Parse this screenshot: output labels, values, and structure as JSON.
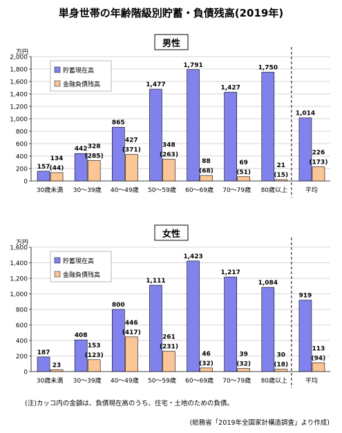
{
  "title": "単身世帯の年齢階級別貯蓄・負債残高(2019年)",
  "footnote": "(注)カッコ内の金額は、負債現在高のうち、住宅・土地のための負債。",
  "source": "(総務省「2019年全国家計構造調査」より作成)",
  "colors": {
    "savings": "#8282ee",
    "debt": "#fbc596"
  },
  "chart_data": [
    {
      "type": "bar",
      "title": "男性",
      "unit": "万円",
      "ylim": [
        0,
        2000
      ],
      "yticks": [
        0,
        200,
        400,
        600,
        800,
        1000,
        1200,
        1400,
        1600,
        1800,
        2000
      ],
      "ytick_labels": [
        "0",
        "200",
        "400",
        "600",
        "800",
        "1,000",
        "1,200",
        "1,400",
        "1,600",
        "1,800",
        "2,000"
      ],
      "categories": [
        "30歳未満",
        "30～39歳",
        "40～49歳",
        "50～59歳",
        "60～69歳",
        "70～79歳",
        "80歳以上",
        "平均"
      ],
      "legend": [
        "貯蓄現在高",
        "金融負債残高"
      ],
      "series": [
        {
          "name": "貯蓄現在高",
          "values": [
            157,
            442,
            865,
            1477,
            1791,
            1427,
            1750,
            1014
          ],
          "labels": [
            "157",
            "442",
            "865",
            "1,477",
            "1,791",
            "1,427",
            "1,750",
            "1,014"
          ]
        },
        {
          "name": "金融負債残高",
          "values": [
            134,
            328,
            427,
            348,
            88,
            69,
            21,
            226
          ],
          "labels": [
            "134",
            "328",
            "427",
            "348",
            "88",
            "69",
            "21",
            "226"
          ],
          "sub_labels": [
            "(44)",
            "(285)",
            "(371)",
            "(263)",
            "(68)",
            "(51)",
            "(15)",
            "(173)"
          ]
        }
      ]
    },
    {
      "type": "bar",
      "title": "女性",
      "unit": "万円",
      "ylim": [
        0,
        1600
      ],
      "yticks": [
        0,
        200,
        400,
        600,
        800,
        1000,
        1200,
        1400,
        1600
      ],
      "ytick_labels": [
        "0",
        "200",
        "400",
        "600",
        "800",
        "1,000",
        "1,200",
        "1,400",
        "1,600"
      ],
      "categories": [
        "30歳未満",
        "30～39歳",
        "40～49歳",
        "50～59歳",
        "60～69歳",
        "70～79歳",
        "80歳以上",
        "平均"
      ],
      "legend": [
        "貯蓄現在高",
        "金融負債残高"
      ],
      "series": [
        {
          "name": "貯蓄現在高",
          "values": [
            187,
            408,
            800,
            1111,
            1423,
            1217,
            1084,
            919
          ],
          "labels": [
            "187",
            "408",
            "800",
            "1,111",
            "1,423",
            "1,217",
            "1,084",
            "919"
          ]
        },
        {
          "name": "金融負債残高",
          "values": [
            23,
            153,
            446,
            261,
            46,
            39,
            30,
            113
          ],
          "labels": [
            "23",
            "153",
            "446",
            "261",
            "46",
            "39",
            "30",
            "113"
          ],
          "sub_labels": [
            "",
            "(123)",
            "(417)",
            "(231)",
            "(32)",
            "(32)",
            "(18)",
            "(94)"
          ]
        }
      ]
    }
  ]
}
